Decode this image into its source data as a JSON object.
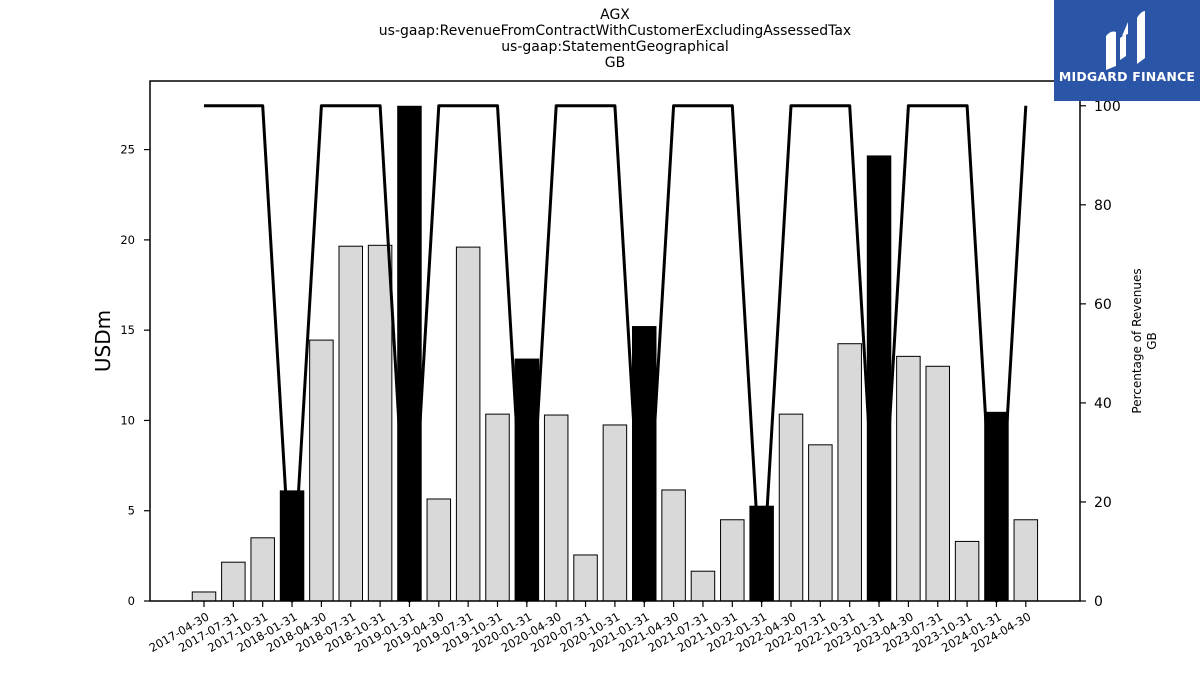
{
  "chart_data": {
    "type": "bar",
    "title_lines": [
      "AGX",
      "us-gaap:RevenueFromContractWithCustomerExcludingAssessedTax",
      "us-gaap:StatementGeographical",
      "GB"
    ],
    "ylabel": "USDm",
    "y2label_lines": [
      "Percentage of Revenues",
      "GB"
    ],
    "ylim": [
      0,
      28.8
    ],
    "y2lim": [
      0,
      105
    ],
    "yticks": [
      0,
      5,
      10,
      15,
      20,
      25
    ],
    "y2ticks": [
      0,
      20,
      40,
      60,
      80,
      100
    ],
    "grid": false,
    "categories": [
      "2017-04-30",
      "2017-07-31",
      "2017-10-31",
      "2018-01-31",
      "2018-04-30",
      "2018-07-31",
      "2018-10-31",
      "2019-01-31",
      "2019-04-30",
      "2019-07-31",
      "2019-10-31",
      "2020-01-31",
      "2020-04-30",
      "2020-07-31",
      "2020-10-31",
      "2021-01-31",
      "2021-04-30",
      "2021-07-31",
      "2021-10-31",
      "2022-01-31",
      "2022-04-30",
      "2022-07-31",
      "2022-10-31",
      "2023-01-31",
      "2023-04-30",
      "2023-07-31",
      "2023-10-31",
      "2024-01-31",
      "2024-04-30"
    ],
    "series": [
      {
        "type": "bar",
        "values": [
          0.5,
          2.15,
          3.5,
          6.1,
          14.45,
          19.65,
          19.7,
          27.4,
          5.65,
          19.6,
          10.35,
          13.4,
          10.3,
          2.55,
          9.75,
          15.2,
          6.15,
          1.65,
          4.5,
          5.25,
          10.35,
          8.65,
          14.25,
          24.65,
          13.55,
          13.0,
          3.3,
          10.45,
          4.5
        ],
        "highlight": [
          false,
          false,
          false,
          true,
          false,
          false,
          false,
          true,
          false,
          false,
          false,
          true,
          false,
          false,
          false,
          true,
          false,
          false,
          false,
          true,
          false,
          false,
          false,
          true,
          false,
          false,
          false,
          true,
          false
        ],
        "color": "#d9d9d9",
        "highlight_color": "#000000"
      },
      {
        "type": "line",
        "axis": "right",
        "values": [
          100,
          100,
          100,
          0,
          100,
          100,
          100,
          0,
          100,
          100,
          100,
          0,
          100,
          100,
          100,
          0,
          100,
          100,
          100,
          0,
          100,
          100,
          100,
          0,
          100,
          100,
          100,
          0,
          100
        ],
        "color": "#000000"
      }
    ]
  },
  "logo": {
    "text": "MIDGARD FINANCE",
    "background": "#2b56a8"
  }
}
